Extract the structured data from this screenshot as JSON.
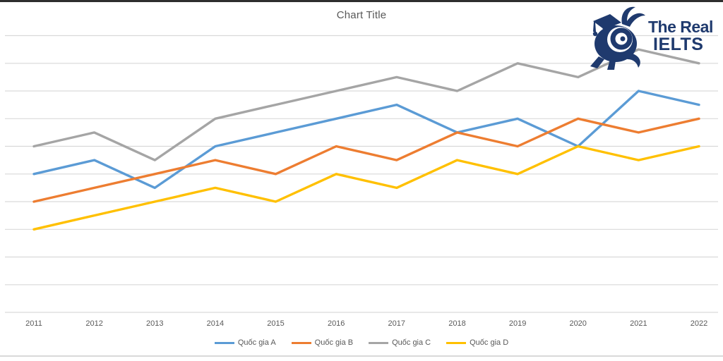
{
  "chart_data": {
    "type": "line",
    "title": "Chart Title",
    "categories": [
      "2011",
      "2012",
      "2013",
      "2014",
      "2015",
      "2016",
      "2017",
      "2018",
      "2019",
      "2020",
      "2021",
      "2022"
    ],
    "series": [
      {
        "name": "Quốc gia A",
        "color": "#5B9BD5",
        "values": [
          50,
          55,
          45,
          60,
          65,
          70,
          75,
          65,
          70,
          60,
          80,
          75
        ]
      },
      {
        "name": "Quốc gia B",
        "color": "#ED7D31",
        "values": [
          40,
          45,
          50,
          55,
          50,
          60,
          55,
          65,
          60,
          70,
          65,
          70
        ]
      },
      {
        "name": "Quốc gia C",
        "color": "#A5A5A5",
        "values": [
          60,
          65,
          55,
          70,
          75,
          80,
          85,
          80,
          90,
          85,
          95,
          90
        ]
      },
      {
        "name": "Quốc gia D",
        "color": "#FFC000",
        "values": [
          30,
          35,
          40,
          45,
          40,
          50,
          45,
          55,
          50,
          60,
          55,
          60
        ]
      }
    ],
    "xlabel": "",
    "ylabel": "",
    "ylim": [
      0,
      100
    ],
    "grid_step": 10,
    "grid": "horizontal",
    "y_axis_labels_visible": false,
    "legend_position": "bottom"
  },
  "logo": {
    "line1": "The Real",
    "line2": "IELTS",
    "color": "#1f3a6e"
  },
  "colors": {
    "background": "#ffffff",
    "gridline": "#d9d9d9",
    "title": "#595959",
    "axis_label": "#595959",
    "legend_label": "#595959",
    "top_border": "#2e2e2e",
    "bottom_border": "#d9d9d9"
  }
}
